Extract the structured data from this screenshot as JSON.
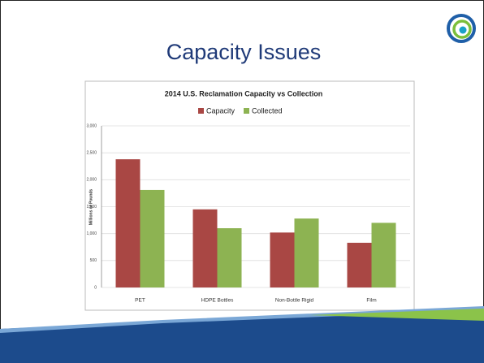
{
  "slide": {
    "title": "Capacity Issues"
  },
  "chart_data": {
    "type": "bar",
    "title": "2014 U.S. Reclamation Capacity vs Collection",
    "y_label": "Millions of Pounds",
    "categories": [
      "PET",
      "HDPE Bottles",
      "Non-Bottle Rigid",
      "Film"
    ],
    "series": [
      {
        "name": "Capacity",
        "color": "#a94744",
        "values": [
          2380,
          1450,
          1020,
          830
        ]
      },
      {
        "name": "Collected",
        "color": "#8db352",
        "values": [
          1810,
          1100,
          1280,
          1200
        ]
      }
    ],
    "ylim": [
      0,
      3000
    ],
    "yticks": [
      0,
      500,
      {
        "value": 1000,
        "label": "1,000"
      },
      {
        "value": 1500,
        "label": "1,500"
      },
      {
        "value": 2000,
        "label": "2,000"
      },
      {
        "value": 2500,
        "label": "2,500"
      },
      {
        "value": 3000,
        "label": "3,000"
      }
    ],
    "grid": true,
    "legend": "top"
  }
}
